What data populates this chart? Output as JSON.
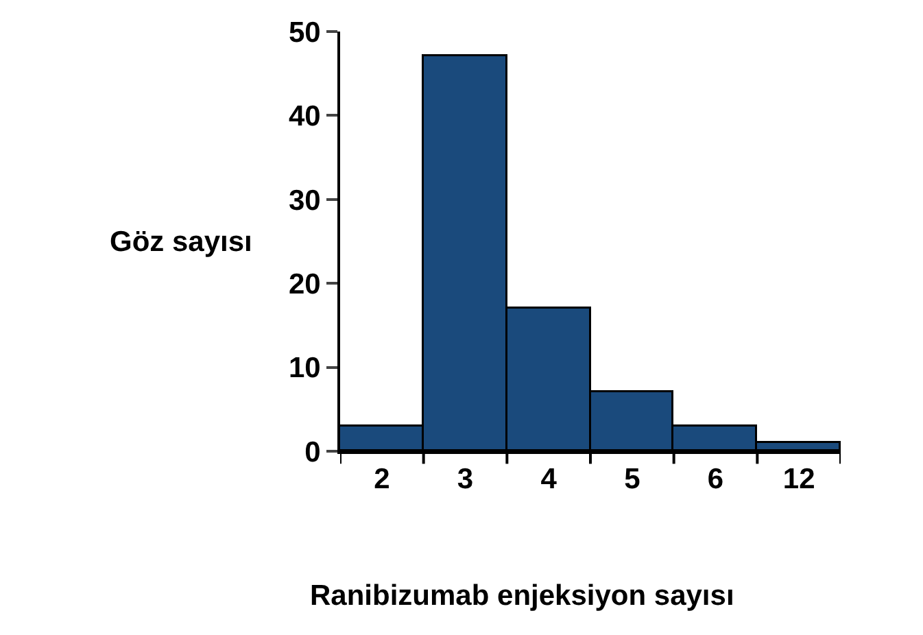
{
  "chart_data": {
    "type": "bar",
    "xlabel": "Ranibizumab enjeksiyon sayısı",
    "ylabel": "Göz sayısı",
    "categories": [
      "2",
      "3",
      "4",
      "5",
      "6",
      "12"
    ],
    "values": [
      3,
      47,
      17,
      7,
      3,
      1
    ],
    "color": "#1a4a7c",
    "ylim": [
      0,
      50
    ],
    "yticks": [
      0,
      10,
      20,
      30,
      40,
      50
    ],
    "legend": false
  }
}
